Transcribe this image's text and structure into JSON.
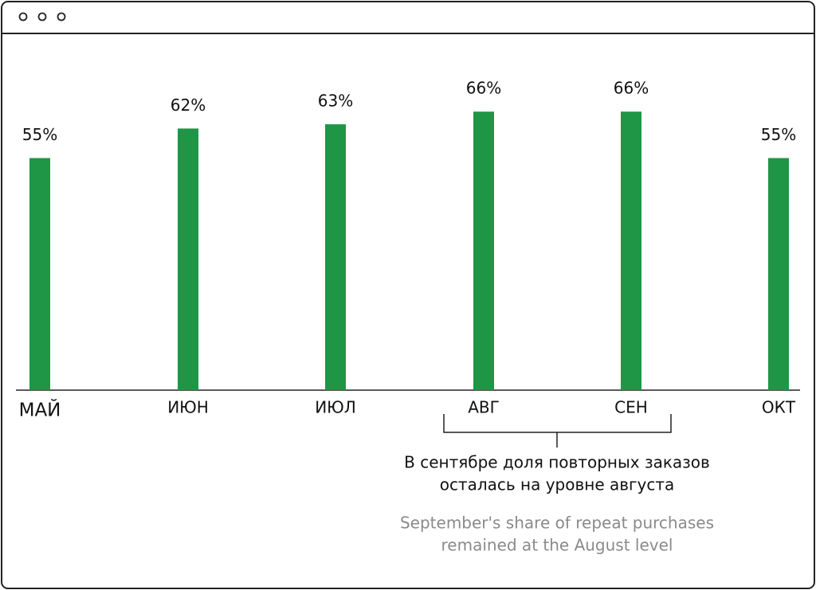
{
  "chart_data": {
    "type": "bar",
    "categories": [
      "МАЙ",
      "ИЮН",
      "ИЮЛ",
      "АВГ",
      "СЕН",
      "ОКТ"
    ],
    "values": [
      55,
      62,
      63,
      66,
      66,
      55
    ],
    "value_labels": [
      "55%",
      "62%",
      "63%",
      "66%",
      "66%",
      "55%"
    ],
    "color": "#1e9645",
    "ylim": [
      0,
      90
    ],
    "annotation": [
      "В сентябре доля повторных заказов",
      "осталась на уровне августа"
    ],
    "annotation_translation": [
      "September's share of repeat purchases",
      "remained at the August level"
    ]
  }
}
